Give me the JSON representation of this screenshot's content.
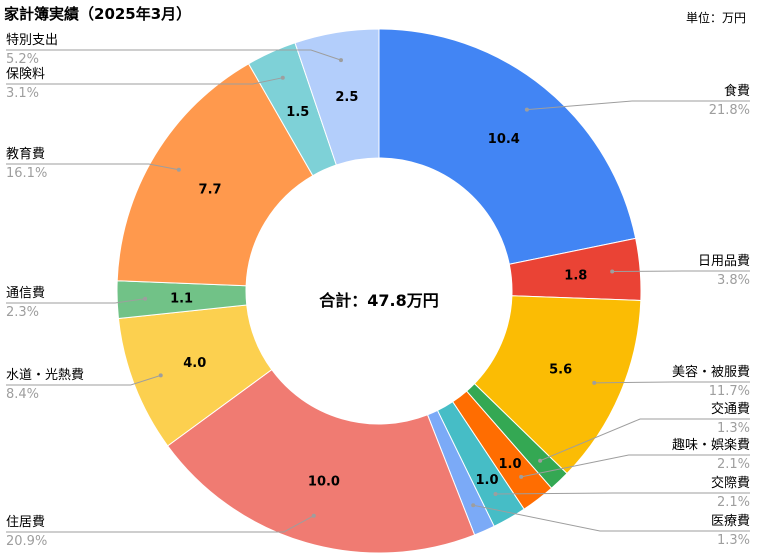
{
  "chart_data": {
    "type": "pie",
    "title": "家計簿実績（2025年3月）",
    "unit_label": "単位：万円",
    "center_label": "合計：47.8万円",
    "slices": [
      {
        "category": "食費",
        "value": "10.4",
        "percent": "21.8%",
        "color": "#4285f4"
      },
      {
        "category": "日用品費",
        "value": "1.8",
        "percent": "3.8%",
        "color": "#ea4335"
      },
      {
        "category": "美容・被服費",
        "value": "5.6",
        "percent": "11.7%",
        "color": "#fbbc04"
      },
      {
        "category": "交通費",
        "value": "0.6",
        "percent": "1.3%",
        "color": "#34a853"
      },
      {
        "category": "趣味・娯楽費",
        "value": "1.0",
        "percent": "2.1%",
        "color": "#ff6d01"
      },
      {
        "category": "交際費",
        "value": "1.0",
        "percent": "2.1%",
        "color": "#46bdc6"
      },
      {
        "category": "医療費",
        "value": "0.6",
        "percent": "1.3%",
        "color": "#7baaf7"
      },
      {
        "category": "住居費",
        "value": "10.0",
        "percent": "20.9%",
        "color": "#f07b72"
      },
      {
        "category": "水道・光熱費",
        "value": "4.0",
        "percent": "8.4%",
        "color": "#fcd04f"
      },
      {
        "category": "通信費",
        "value": "1.1",
        "percent": "2.3%",
        "color": "#71c287"
      },
      {
        "category": "教育費",
        "value": "7.7",
        "percent": "16.1%",
        "color": "#ff994d"
      },
      {
        "category": "保険料",
        "value": "1.5",
        "percent": "3.1%",
        "color": "#7ed1d7"
      },
      {
        "category": "特別支出",
        "value": "2.5",
        "percent": "5.2%",
        "color": "#b3cefb"
      }
    ],
    "value_labels_shown": [
      "10.4",
      "1.8",
      "5.6",
      "",
      "1.0",
      "1.0",
      "",
      "10.0",
      "4.0",
      "1.1",
      "7.7",
      "1.5",
      "2.5"
    ]
  }
}
